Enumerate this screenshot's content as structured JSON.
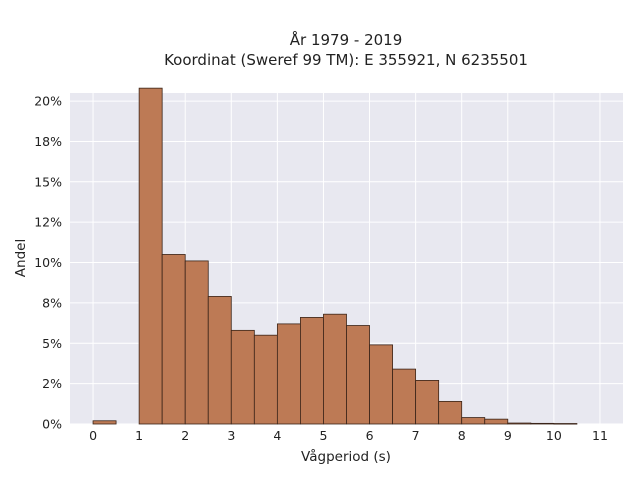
{
  "chart_data": {
    "type": "bar",
    "title_lines": [
      "År 1979 - 2019",
      "Koordinat (Sweref 99 TM): E 355921, N 6235501"
    ],
    "xlabel": "Vågperiod (s)",
    "ylabel": "Andel",
    "xlim": [
      -0.5,
      11.5
    ],
    "ylim": [
      0,
      0.205
    ],
    "xticks": [
      0,
      1,
      2,
      3,
      4,
      5,
      6,
      7,
      8,
      9,
      10,
      11
    ],
    "yticks": [
      {
        "value": 0.0,
        "label": "0%"
      },
      {
        "value": 0.025,
        "label": "2%"
      },
      {
        "value": 0.05,
        "label": "5%"
      },
      {
        "value": 0.075,
        "label": "8%"
      },
      {
        "value": 0.1,
        "label": "10%"
      },
      {
        "value": 0.125,
        "label": "12%"
      },
      {
        "value": 0.15,
        "label": "15%"
      },
      {
        "value": 0.175,
        "label": "18%"
      },
      {
        "value": 0.2,
        "label": "20%"
      }
    ],
    "bin_width": 0.5,
    "bins": [
      {
        "start": 0.0,
        "value": 0.002
      },
      {
        "start": 1.0,
        "value": 0.208
      },
      {
        "start": 1.5,
        "value": 0.105
      },
      {
        "start": 2.0,
        "value": 0.101
      },
      {
        "start": 2.5,
        "value": 0.079
      },
      {
        "start": 3.0,
        "value": 0.058
      },
      {
        "start": 3.5,
        "value": 0.055
      },
      {
        "start": 4.0,
        "value": 0.062
      },
      {
        "start": 4.5,
        "value": 0.066
      },
      {
        "start": 5.0,
        "value": 0.068
      },
      {
        "start": 5.5,
        "value": 0.061
      },
      {
        "start": 6.0,
        "value": 0.049
      },
      {
        "start": 6.5,
        "value": 0.034
      },
      {
        "start": 7.0,
        "value": 0.027
      },
      {
        "start": 7.5,
        "value": 0.014
      },
      {
        "start": 8.0,
        "value": 0.004
      },
      {
        "start": 8.5,
        "value": 0.003
      },
      {
        "start": 9.0,
        "value": 0.0006
      },
      {
        "start": 9.5,
        "value": 0.0004
      },
      {
        "start": 10.0,
        "value": 0.0003
      }
    ],
    "grid": true,
    "colors": {
      "bar_fill": "#bd7a55",
      "bar_edge": "#3a2418",
      "plot_background": "#e8e8f0",
      "grid": "#ffffff"
    }
  }
}
